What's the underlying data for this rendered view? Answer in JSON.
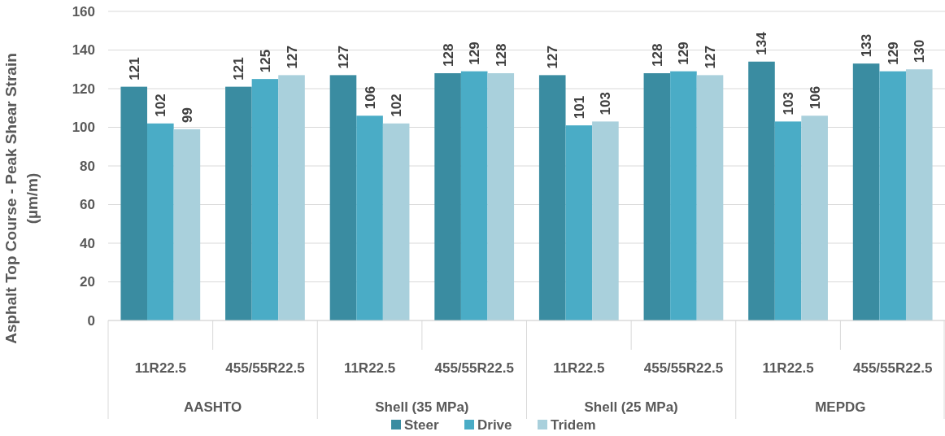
{
  "chart_data": {
    "type": "bar",
    "ylabel": "Asphalt Top Course - Peak Shear Strain (µm/m)",
    "categories": [
      "11R22.5",
      "455/55R22.5",
      "11R22.5",
      "455/55R22.5",
      "11R22.5",
      "455/55R22.5",
      "11R22.5",
      "455/55R22.5"
    ],
    "annotations": [
      "AASHTO",
      "Shell (35 MPa)",
      "Shell (25 MPa)",
      "MEPDG"
    ],
    "series": [
      {
        "name": "Steer",
        "color": "#3a8ca1",
        "values": [
          121,
          121,
          127,
          128,
          127,
          128,
          134,
          133
        ]
      },
      {
        "name": "Drive",
        "color": "#4aacc6",
        "values": [
          102,
          125,
          106,
          129,
          101,
          129,
          103,
          129
        ]
      },
      {
        "name": "Tridem",
        "color": "#a9d0dc",
        "values": [
          99,
          127,
          102,
          128,
          103,
          127,
          106,
          130
        ]
      }
    ],
    "ylim": [
      0,
      160
    ],
    "yticks": [
      0,
      20,
      40,
      60,
      80,
      100,
      120,
      140,
      160
    ],
    "grid": "y",
    "legend": "bottom",
    "data_labels": true
  }
}
